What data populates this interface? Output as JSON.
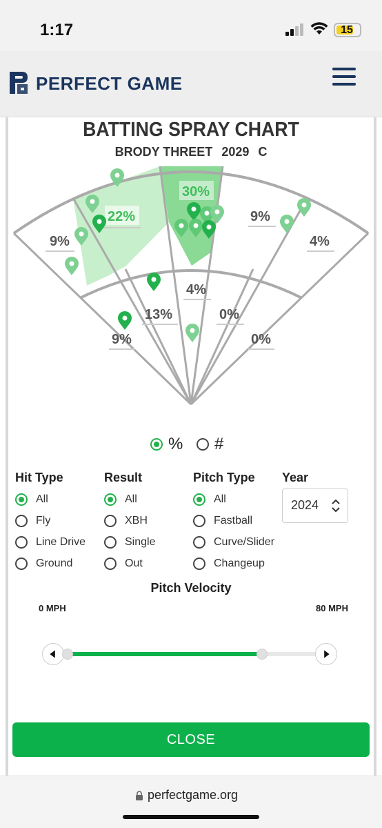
{
  "status": {
    "time": "1:17",
    "battery": "15"
  },
  "header": {
    "brand": "PERFECT GAME",
    "colors": {
      "brand": "#1a355e"
    }
  },
  "chart": {
    "title": "BATTING SPRAY CHART",
    "player_name": "BRODY THREET",
    "year": "2029",
    "position": "C"
  },
  "chart_data": {
    "type": "spray",
    "zones": [
      {
        "zone": "outfield-left",
        "value": "9%"
      },
      {
        "zone": "outfield-left-center",
        "value": "22%"
      },
      {
        "zone": "outfield-center",
        "value": "30%"
      },
      {
        "zone": "outfield-right-center",
        "value": "9%"
      },
      {
        "zone": "outfield-right",
        "value": "4%"
      },
      {
        "zone": "infield-left",
        "value": "9%"
      },
      {
        "zone": "infield-left-center",
        "value": "13%"
      },
      {
        "zone": "infield-center",
        "value": "4%"
      },
      {
        "zone": "infield-right-center",
        "value": "0%"
      },
      {
        "zone": "infield-right",
        "value": "0%"
      }
    ],
    "colors": {
      "highlight_strong": "#7fd68a",
      "highlight_light": "#c8efcb",
      "marker_dark": "#22b14c",
      "marker_light": "#7ed192"
    }
  },
  "mode": {
    "percent_label": "%",
    "count_label": "#",
    "selected": "%"
  },
  "filters": {
    "hit_type": {
      "label": "Hit Type",
      "options": [
        "All",
        "Fly",
        "Line Drive",
        "Ground"
      ],
      "selected": "All"
    },
    "result": {
      "label": "Result",
      "options": [
        "All",
        "XBH",
        "Single",
        "Out"
      ],
      "selected": "All"
    },
    "pitch_type": {
      "label": "Pitch Type",
      "options": [
        "All",
        "Fastball",
        "Curve/Slider",
        "Changeup"
      ],
      "selected": "All"
    },
    "year": {
      "label": "Year",
      "value": "2024"
    }
  },
  "velocity": {
    "title": "Pitch Velocity",
    "min_label": "0 MPH",
    "max_label": "80 MPH",
    "range_fraction": [
      0.0,
      0.78
    ]
  },
  "close_label": "CLOSE",
  "url": "perfectgame.org"
}
